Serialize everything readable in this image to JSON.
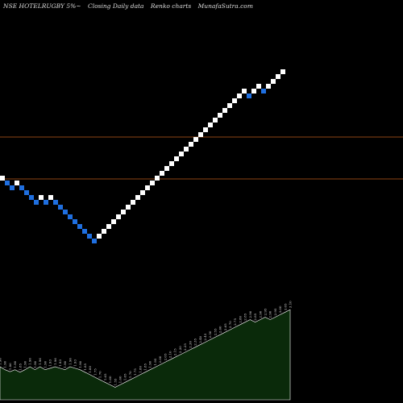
{
  "header": {
    "symbol": "NSE HOTELRUGBY 5%~",
    "data_label": "Closing Daily data",
    "chart_label": "Renko  charts",
    "site": "MunafaSutra.com"
  },
  "colors": {
    "background": "#000000",
    "up_brick": "#ffffff",
    "down_brick": "#1f6fe0",
    "reference_line": "#8b4513",
    "volume_fill": "#0a2a0a",
    "volume_stroke": "#ffffff",
    "label_color": "#dddddd"
  },
  "chart_data": [
    {
      "type": "renko",
      "directions": [
        "up",
        "down",
        "down",
        "up",
        "down",
        "down",
        "down",
        "down",
        "up",
        "down",
        "up",
        "down",
        "down",
        "down",
        "down",
        "down",
        "down",
        "down",
        "down",
        "down",
        "up",
        "up",
        "up",
        "up",
        "up",
        "up",
        "up",
        "up",
        "up",
        "up",
        "up",
        "up",
        "up",
        "up",
        "up",
        "up",
        "up",
        "up",
        "up",
        "up",
        "up",
        "up",
        "up",
        "up",
        "up",
        "up",
        "up",
        "up",
        "up",
        "up",
        "up",
        "down",
        "up",
        "up",
        "down",
        "up",
        "up",
        "up",
        "up"
      ],
      "reference_lines": [
        "upper",
        "lower"
      ]
    },
    {
      "type": "area",
      "labels": [
        "1.96",
        "1.90",
        "1.86",
        "1.90",
        "1.85",
        "1.90",
        "1.96",
        "1.90",
        "1.96",
        "1.90",
        "1.93",
        "1.96",
        "1.93",
        "1.90",
        "1.96",
        "1.93",
        "1.90",
        "1.85",
        "1.80",
        "1.75",
        "1.70",
        "1.65",
        "1.60",
        "1.55",
        "1.60",
        "1.65",
        "1.70",
        "1.75",
        "1.80",
        "1.85",
        "1.90",
        "1.95",
        "2.00",
        "2.05",
        "2.10",
        "2.15",
        "2.20",
        "2.25",
        "2.30",
        "2.35",
        "2.40",
        "2.45",
        "2.50",
        "2.55",
        "2.60",
        "2.65",
        "2.70",
        "2.75",
        "2.80",
        "2.85",
        "2.90",
        "2.85",
        "2.90",
        "2.95",
        "2.90",
        "2.95",
        "3.00",
        "3.05",
        "3.10"
      ],
      "values": [
        1.96,
        1.9,
        1.86,
        1.9,
        1.85,
        1.9,
        1.96,
        1.9,
        1.96,
        1.9,
        1.93,
        1.96,
        1.93,
        1.9,
        1.96,
        1.93,
        1.9,
        1.85,
        1.8,
        1.75,
        1.7,
        1.65,
        1.6,
        1.55,
        1.6,
        1.65,
        1.7,
        1.75,
        1.8,
        1.85,
        1.9,
        1.95,
        2.0,
        2.05,
        2.1,
        2.15,
        2.2,
        2.25,
        2.3,
        2.35,
        2.4,
        2.45,
        2.5,
        2.55,
        2.6,
        2.65,
        2.7,
        2.75,
        2.8,
        2.85,
        2.9,
        2.85,
        2.9,
        2.95,
        2.9,
        2.95,
        3.0,
        3.05,
        3.1
      ]
    }
  ]
}
